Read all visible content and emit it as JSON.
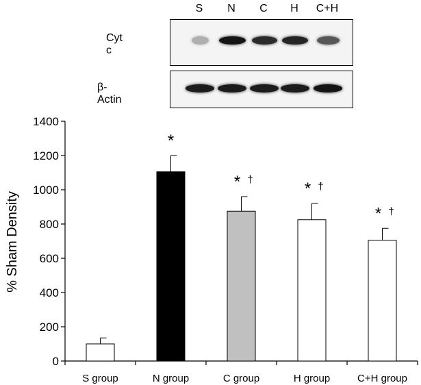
{
  "blot": {
    "lanes": [
      "S",
      "N",
      "C",
      "H",
      "C+H"
    ],
    "rows": [
      {
        "label": "Cyt c",
        "band_intensity": [
          0.25,
          0.95,
          0.85,
          0.88,
          0.65
        ]
      },
      {
        "label": "β-Actin",
        "band_intensity": [
          0.92,
          0.92,
          0.92,
          0.92,
          0.95
        ]
      }
    ]
  },
  "chart_data": {
    "type": "bar",
    "categories": [
      "S group",
      "N group",
      "C group",
      "H group",
      "C+H group"
    ],
    "values": [
      100,
      1105,
      875,
      825,
      705
    ],
    "errors": [
      35,
      95,
      85,
      95,
      70
    ],
    "bar_colors": [
      "#ffffff",
      "#000000",
      "#c0c0c0",
      "#ffffff",
      "#ffffff"
    ],
    "annotations": [
      "",
      "*",
      "* †",
      "* †",
      "* †"
    ],
    "ylabel": "% Sham Density",
    "xlabel": "",
    "ylim": [
      0,
      1400
    ],
    "yticks": [
      0,
      200,
      400,
      600,
      800,
      1000,
      1200,
      1400
    ],
    "grid": false
  }
}
